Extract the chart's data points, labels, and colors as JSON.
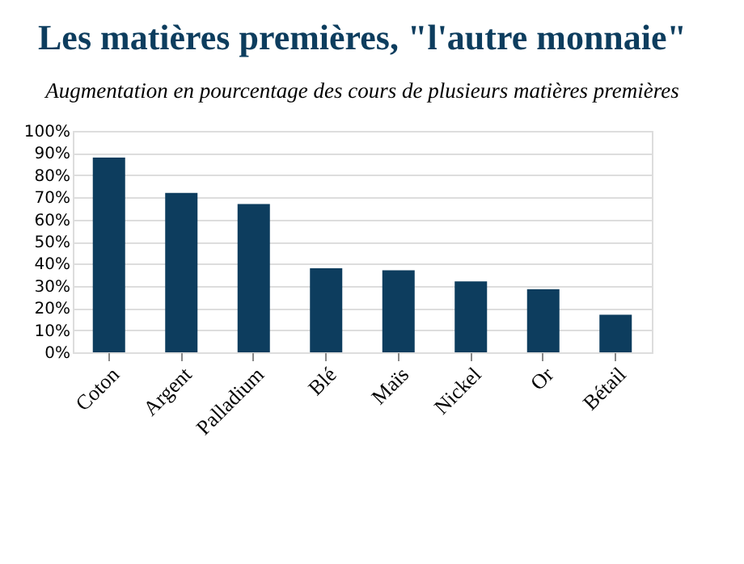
{
  "chart_data": {
    "type": "bar",
    "title": "Les matières premières, \"l'autre monnaie\"",
    "subtitle": "Augmentation en pourcentage des cours de plusieurs matières premières",
    "categories": [
      "Coton",
      "Argent",
      "Palladium",
      "Blé",
      "Maïs",
      "Nickel",
      "Or",
      "Bétail"
    ],
    "values": [
      88,
      72,
      67,
      38,
      37,
      32,
      28.5,
      17
    ],
    "color": "#0d3d5e",
    "ylim": [
      0,
      100
    ],
    "yticks": [
      {
        "value": 0,
        "label": "0%"
      },
      {
        "value": 10,
        "label": "10%"
      },
      {
        "value": 20,
        "label": "20%"
      },
      {
        "value": 30,
        "label": "30%"
      },
      {
        "value": 40,
        "label": "40%"
      },
      {
        "value": 50,
        "label": "50%"
      },
      {
        "value": 60,
        "label": "60%"
      },
      {
        "value": 70,
        "label": "70%"
      },
      {
        "value": 80,
        "label": "80%"
      },
      {
        "value": 90,
        "label": "90%"
      },
      {
        "value": 100,
        "label": "100%"
      }
    ],
    "grid": "y"
  }
}
